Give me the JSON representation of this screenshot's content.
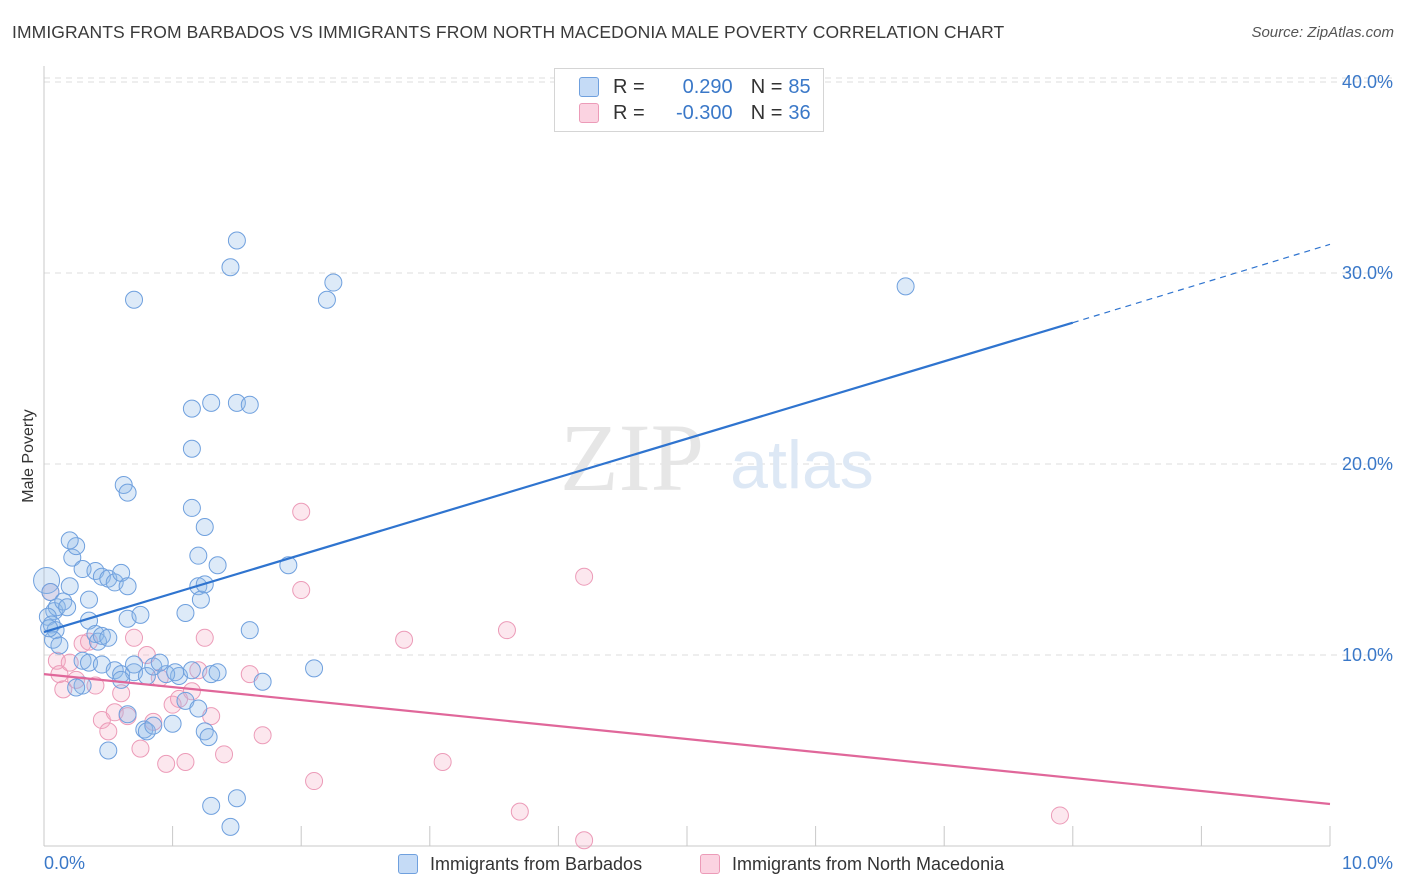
{
  "title": "IMMIGRANTS FROM BARBADOS VS IMMIGRANTS FROM NORTH MACEDONIA MALE POVERTY CORRELATION CHART",
  "source": "Source: ZipAtlas.com",
  "watermark": {
    "zip": "ZIP",
    "atlas": "atlas"
  },
  "legend": {
    "rows": [
      {
        "r_label": "R =",
        "r_value": "0.290",
        "n_label": "N =",
        "n_value": "85"
      },
      {
        "r_label": "R =",
        "r_value": "-0.300",
        "n_label": "N =",
        "n_value": "36"
      }
    ]
  },
  "chart_data": {
    "type": "scatter",
    "title": "IMMIGRANTS FROM BARBADOS VS IMMIGRANTS FROM NORTH MACEDONIA MALE POVERTY CORRELATION CHART",
    "xlabel": "",
    "ylabel": "Male Poverty",
    "xlim": [
      0,
      10
    ],
    "ylim": [
      0,
      42
    ],
    "x_tick_labels": [
      "0.0%",
      "10.0%"
    ],
    "y_ticks": [
      10,
      20,
      30,
      40
    ],
    "y_tick_labels": [
      "10.0%",
      "20.0%",
      "30.0%",
      "40.0%"
    ],
    "grid": true,
    "legend_position": "bottom",
    "series": [
      {
        "name": "Immigrants from Barbados",
        "color": "#8fb8e8",
        "line_color": "#2f74cf",
        "trend": {
          "x": [
            0,
            8
          ],
          "y": [
            11.2,
            27.4
          ],
          "dashed_to": [
            10,
            31.5
          ]
        },
        "points": [
          [
            0.02,
            13.9
          ],
          [
            0.05,
            13.3
          ],
          [
            0.08,
            12.3
          ],
          [
            0.1,
            12.5
          ],
          [
            0.03,
            12.0
          ],
          [
            0.06,
            11.6
          ],
          [
            0.09,
            11.3
          ],
          [
            0.07,
            10.8
          ],
          [
            0.12,
            10.5
          ],
          [
            0.04,
            11.4
          ],
          [
            0.15,
            12.8
          ],
          [
            0.18,
            12.5
          ],
          [
            0.2,
            13.6
          ],
          [
            0.22,
            15.1
          ],
          [
            0.25,
            15.7
          ],
          [
            0.2,
            16.0
          ],
          [
            0.3,
            14.5
          ],
          [
            0.35,
            12.9
          ],
          [
            0.4,
            14.4
          ],
          [
            0.45,
            14.1
          ],
          [
            0.5,
            14.0
          ],
          [
            0.55,
            13.8
          ],
          [
            0.6,
            14.3
          ],
          [
            0.65,
            13.6
          ],
          [
            0.35,
            11.8
          ],
          [
            0.4,
            11.1
          ],
          [
            0.42,
            10.7
          ],
          [
            0.45,
            11.0
          ],
          [
            0.5,
            10.9
          ],
          [
            0.3,
            9.7
          ],
          [
            0.35,
            9.6
          ],
          [
            0.45,
            9.5
          ],
          [
            0.55,
            9.2
          ],
          [
            0.6,
            9.0
          ],
          [
            0.7,
            9.1
          ],
          [
            0.6,
            8.7
          ],
          [
            0.3,
            8.4
          ],
          [
            0.25,
            8.3
          ],
          [
            0.8,
            8.9
          ],
          [
            0.85,
            9.4
          ],
          [
            0.7,
            9.5
          ],
          [
            0.65,
            11.9
          ],
          [
            0.75,
            12.1
          ],
          [
            0.5,
            5.0
          ],
          [
            0.65,
            6.9
          ],
          [
            0.78,
            6.1
          ],
          [
            0.8,
            6.0
          ],
          [
            0.85,
            6.3
          ],
          [
            1.0,
            6.4
          ],
          [
            1.1,
            7.6
          ],
          [
            1.2,
            7.2
          ],
          [
            1.05,
            8.9
          ],
          [
            0.95,
            9.0
          ],
          [
            1.02,
            9.1
          ],
          [
            1.15,
            9.2
          ],
          [
            1.3,
            9.0
          ],
          [
            1.35,
            9.1
          ],
          [
            1.25,
            6.0
          ],
          [
            1.28,
            5.7
          ],
          [
            1.3,
            2.1
          ],
          [
            1.45,
            1.0
          ],
          [
            1.5,
            2.5
          ],
          [
            0.9,
            9.6
          ],
          [
            1.1,
            12.2
          ],
          [
            1.2,
            15.2
          ],
          [
            1.35,
            14.7
          ],
          [
            1.15,
            22.9
          ],
          [
            1.15,
            20.8
          ],
          [
            1.3,
            23.2
          ],
          [
            1.15,
            17.7
          ],
          [
            1.25,
            16.7
          ],
          [
            1.2,
            13.6
          ],
          [
            1.22,
            12.9
          ],
          [
            1.25,
            13.7
          ],
          [
            1.6,
            11.3
          ],
          [
            1.7,
            8.6
          ],
          [
            1.9,
            14.7
          ],
          [
            2.1,
            9.3
          ],
          [
            1.5,
            23.2
          ],
          [
            1.6,
            23.1
          ],
          [
            0.7,
            28.6
          ],
          [
            1.45,
            30.3
          ],
          [
            1.5,
            31.7
          ],
          [
            2.2,
            28.6
          ],
          [
            2.25,
            29.5
          ],
          [
            6.7,
            29.3
          ],
          [
            0.62,
            18.9
          ],
          [
            0.65,
            18.5
          ]
        ]
      },
      {
        "name": "Immigrants from North Macedonia",
        "color": "#f3a8c2",
        "line_color": "#e0679a",
        "trend": {
          "x": [
            0,
            10
          ],
          "y": [
            9.0,
            2.2
          ]
        },
        "points": [
          [
            0.05,
            13.3
          ],
          [
            0.1,
            9.7
          ],
          [
            0.12,
            9.0
          ],
          [
            0.15,
            8.2
          ],
          [
            0.2,
            9.6
          ],
          [
            0.25,
            8.7
          ],
          [
            0.3,
            10.6
          ],
          [
            0.35,
            10.7
          ],
          [
            0.4,
            8.4
          ],
          [
            0.45,
            6.6
          ],
          [
            0.5,
            6.0
          ],
          [
            0.55,
            7.0
          ],
          [
            0.6,
            8.0
          ],
          [
            0.65,
            6.8
          ],
          [
            0.7,
            10.9
          ],
          [
            0.75,
            5.1
          ],
          [
            0.8,
            10.0
          ],
          [
            0.85,
            6.5
          ],
          [
            0.9,
            8.8
          ],
          [
            0.95,
            4.3
          ],
          [
            1.0,
            7.4
          ],
          [
            1.05,
            7.7
          ],
          [
            1.1,
            4.4
          ],
          [
            1.15,
            8.1
          ],
          [
            1.2,
            9.2
          ],
          [
            1.25,
            10.9
          ],
          [
            1.3,
            6.8
          ],
          [
            1.4,
            4.8
          ],
          [
            1.6,
            9.0
          ],
          [
            1.7,
            5.8
          ],
          [
            2.0,
            13.4
          ],
          [
            2.1,
            3.4
          ],
          [
            2.0,
            17.5
          ],
          [
            2.8,
            10.8
          ],
          [
            3.1,
            4.4
          ],
          [
            3.6,
            11.3
          ],
          [
            3.7,
            1.8
          ],
          [
            4.2,
            14.1
          ],
          [
            4.2,
            0.3
          ],
          [
            7.9,
            1.6
          ]
        ]
      }
    ]
  }
}
